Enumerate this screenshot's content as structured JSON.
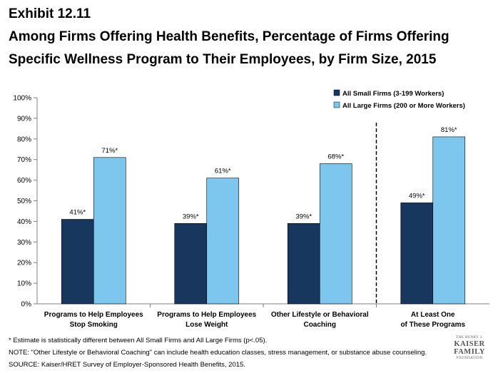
{
  "header": {
    "exhibit": "Exhibit 12.11",
    "title_line1": "Among Firms Offering Health Benefits, Percentage of Firms Offering",
    "title_line2": "Specific Wellness Program to Their Employees, by Firm Size, 2015"
  },
  "chart_data": {
    "type": "bar",
    "title": "Among Firms Offering Health Benefits, Percentage of Firms Offering Specific Wellness Program to Their Employees, by Firm Size, 2015",
    "categories": [
      [
        "Programs to Help Employees",
        "Stop Smoking"
      ],
      [
        "Programs to Help Employees",
        "Lose Weight"
      ],
      [
        "Other Lifestyle or Behavioral",
        "Coaching"
      ],
      [
        "At Least One",
        "of These Programs"
      ]
    ],
    "series": [
      {
        "name": "All Small Firms (3-199 Workers)",
        "color": "#17375e",
        "values": [
          41,
          39,
          39,
          49
        ],
        "labels": [
          "41%*",
          "39%*",
          "39%*",
          "49%*"
        ]
      },
      {
        "name": "All Large Firms (200 or More Workers)",
        "color": "#7dc7ee",
        "values": [
          71,
          61,
          68,
          81
        ],
        "labels": [
          "71%*",
          "61%*",
          "68%*",
          "81%*"
        ]
      }
    ],
    "y_ticks": [
      "0%",
      "10%",
      "20%",
      "30%",
      "40%",
      "50%",
      "60%",
      "70%",
      "80%",
      "90%",
      "100%"
    ],
    "ylim": [
      0,
      100
    ],
    "grid": false,
    "legend_position": "top-right",
    "separator_after_category": 3
  },
  "footnotes": {
    "significance": "* Estimate is statistically different between All Small Firms and All Large Firms (p<.05).",
    "note": "NOTE: \"Other Lifestyle or Behavioral Coaching\" can include health education classes, stress management, or substance abuse counseling.",
    "source": "SOURCE:  Kaiser/HRET Survey of Employer-Sponsored Health Benefits, 2015."
  },
  "logo": {
    "line1": "THE HENRY J.",
    "line2": "KAISER",
    "line3": "FAMILY",
    "line4": "FOUNDATION"
  }
}
